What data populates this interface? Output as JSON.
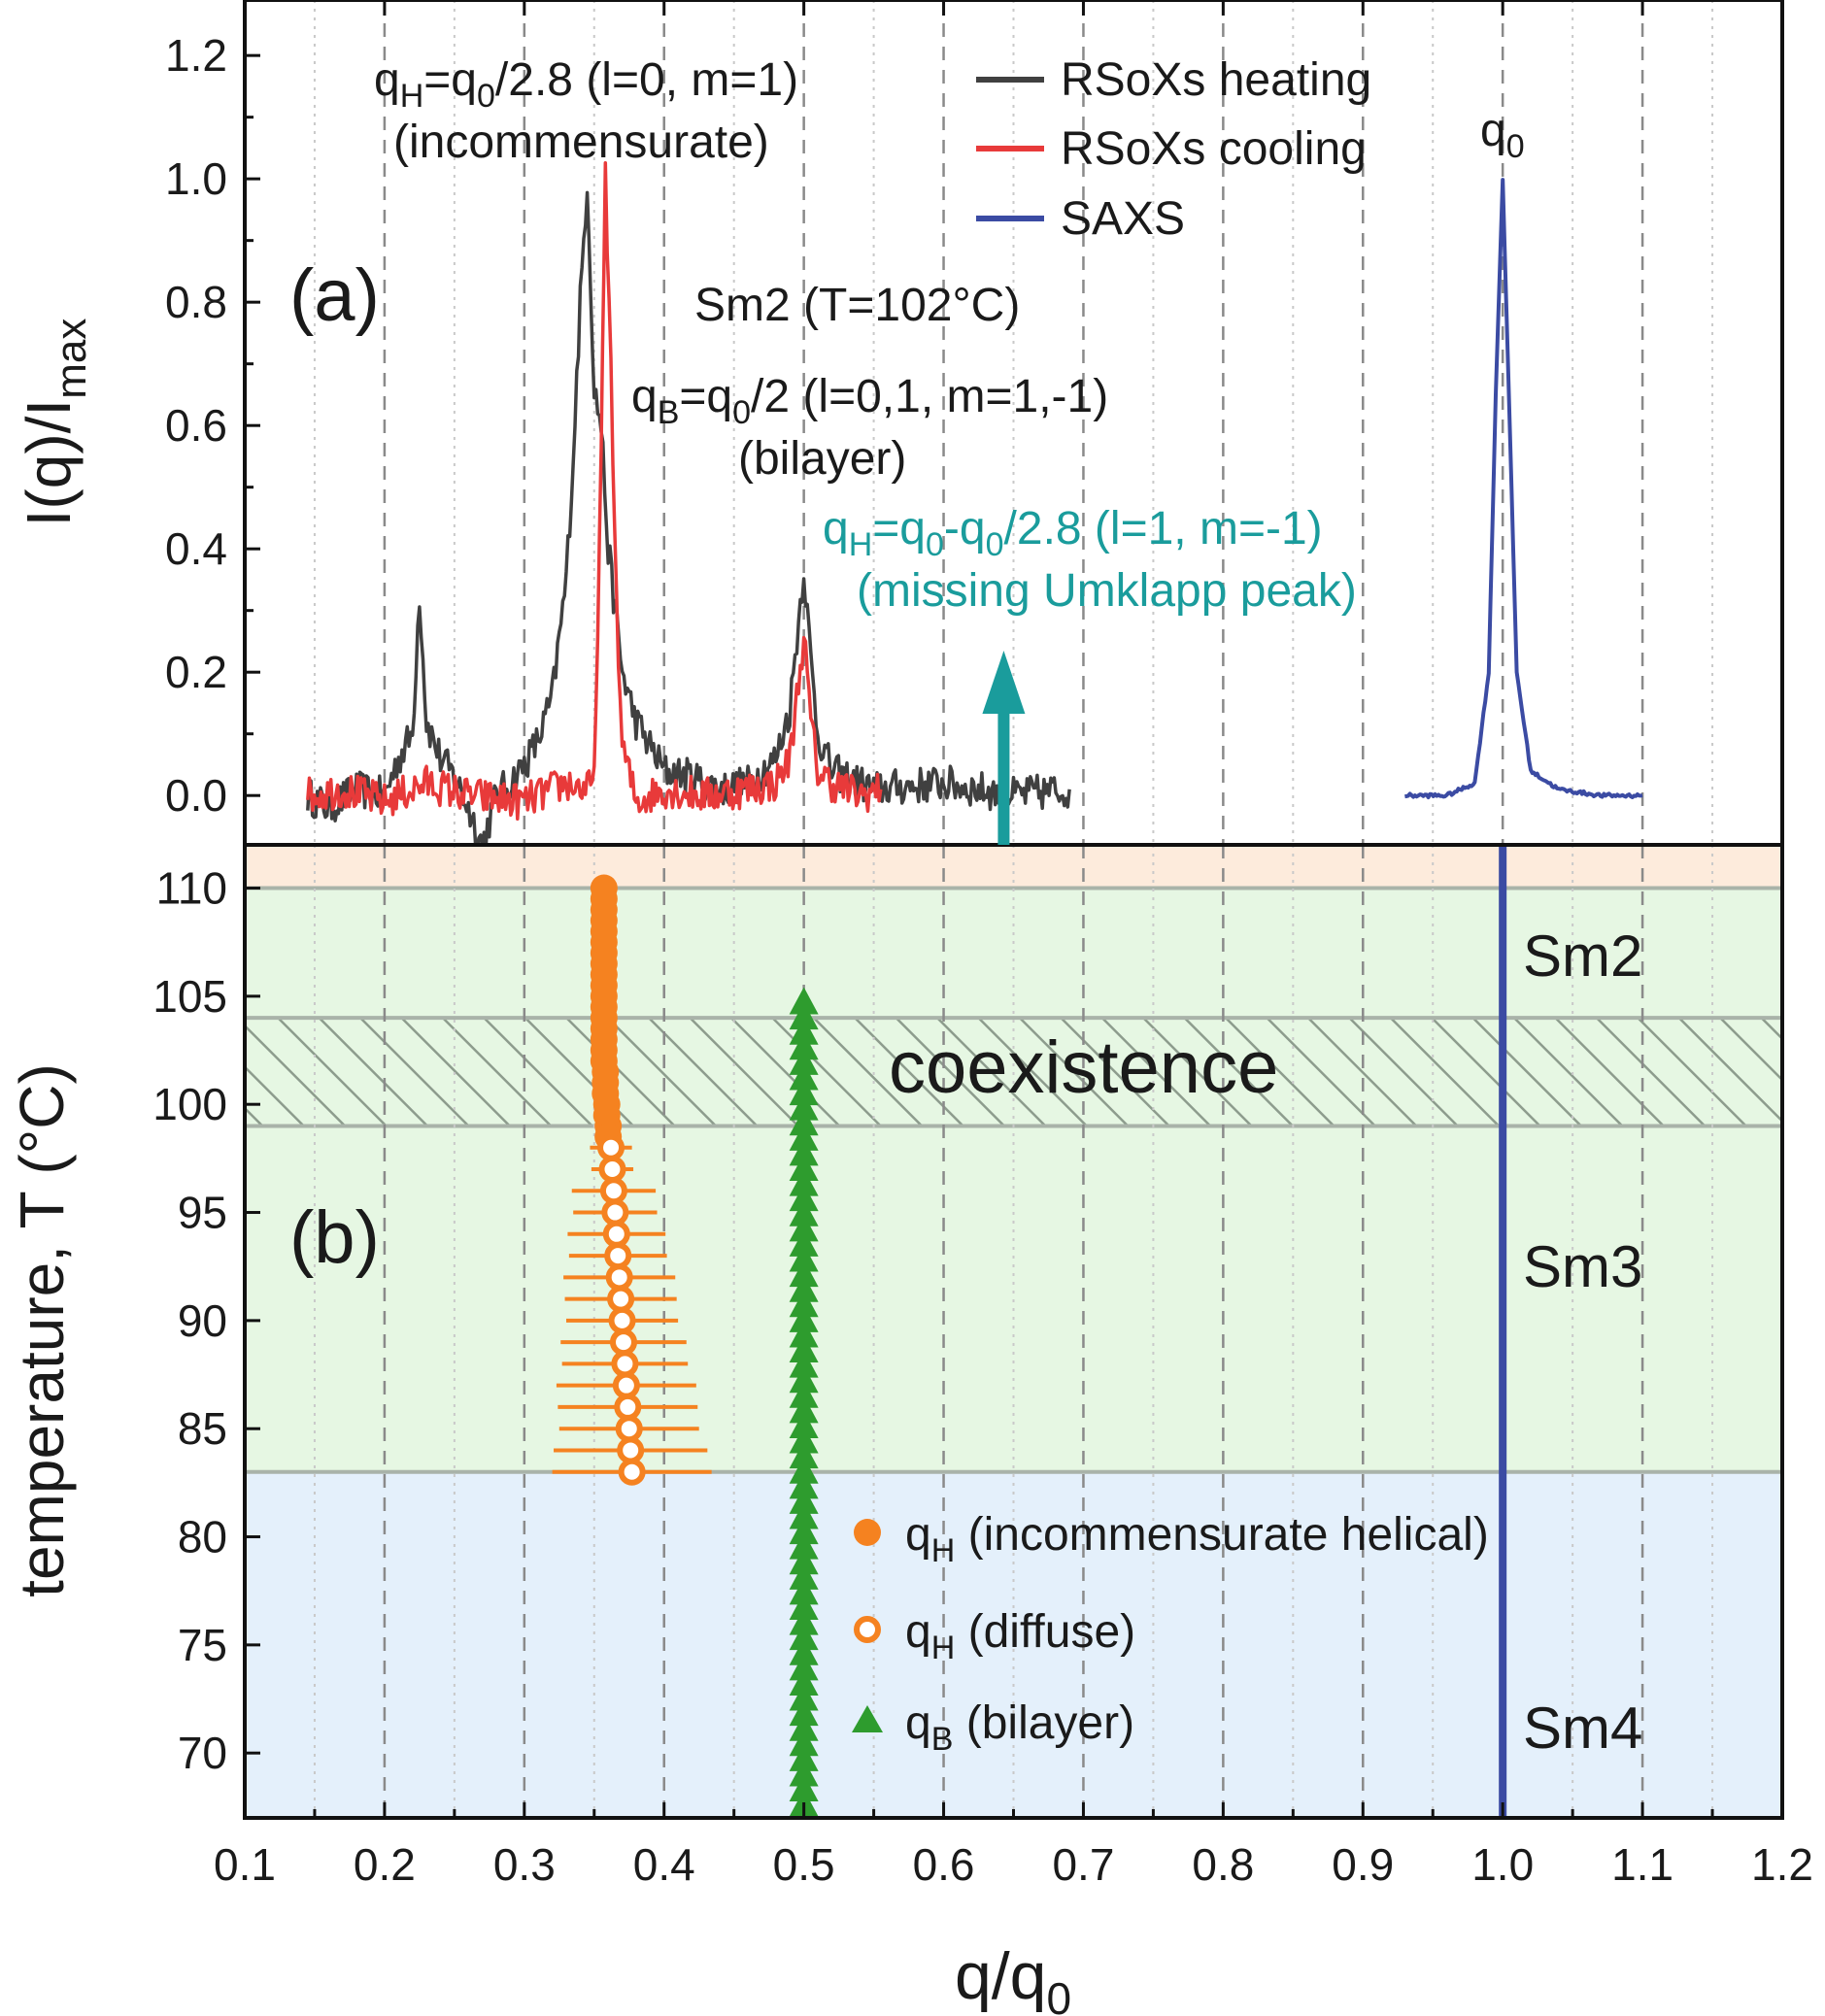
{
  "chart_data": [
    {
      "panel": "a",
      "panel_label": "(a)",
      "type": "line",
      "ylabel": "I(q)/I",
      "ylabel_sub": "max",
      "ylim": [
        -0.08,
        1.29
      ],
      "yticks": [
        "0.0",
        "0.2",
        "0.4",
        "0.6",
        "0.8",
        "1.0",
        "1.2"
      ],
      "ytick_values": [
        0,
        0.2,
        0.4,
        0.6,
        0.8,
        1.0,
        1.2
      ],
      "xlim": [
        0.1,
        1.2
      ],
      "grid": "vertical dashed",
      "legend_position": "top-center",
      "series": [
        {
          "name": "RSoXs heating",
          "color": "#404040",
          "points": [
            [
              0.145,
              0.0
            ],
            [
              0.16,
              -0.02
            ],
            [
              0.18,
              0.01
            ],
            [
              0.2,
              0.0
            ],
            [
              0.21,
              0.06
            ],
            [
              0.22,
              0.1
            ],
            [
              0.225,
              0.33
            ],
            [
              0.23,
              0.12
            ],
            [
              0.24,
              0.06
            ],
            [
              0.25,
              0.03
            ],
            [
              0.26,
              -0.02
            ],
            [
              0.27,
              -0.08
            ],
            [
              0.28,
              0.0
            ],
            [
              0.29,
              0.02
            ],
            [
              0.3,
              0.05
            ],
            [
              0.31,
              0.09
            ],
            [
              0.32,
              0.16
            ],
            [
              0.33,
              0.35
            ],
            [
              0.335,
              0.55
            ],
            [
              0.34,
              0.8
            ],
            [
              0.345,
              1.0
            ],
            [
              0.35,
              0.66
            ],
            [
              0.355,
              0.6
            ],
            [
              0.36,
              0.4
            ],
            [
              0.365,
              0.3
            ],
            [
              0.37,
              0.2
            ],
            [
              0.38,
              0.12
            ],
            [
              0.39,
              0.08
            ],
            [
              0.4,
              0.04
            ],
            [
              0.42,
              0.03
            ],
            [
              0.44,
              0.01
            ],
            [
              0.46,
              0.02
            ],
            [
              0.48,
              0.06
            ],
            [
              0.49,
              0.14
            ],
            [
              0.5,
              0.37
            ],
            [
              0.505,
              0.22
            ],
            [
              0.51,
              0.1
            ],
            [
              0.52,
              0.04
            ],
            [
              0.55,
              0.01
            ],
            [
              0.6,
              0.02
            ],
            [
              0.65,
              0.0
            ],
            [
              0.69,
              0.01
            ]
          ]
        },
        {
          "name": "RSoXs cooling",
          "color": "#e83a3a",
          "points": [
            [
              0.145,
              0.0
            ],
            [
              0.17,
              0.01
            ],
            [
              0.2,
              -0.01
            ],
            [
              0.23,
              0.02
            ],
            [
              0.26,
              0.0
            ],
            [
              0.3,
              -0.01
            ],
            [
              0.33,
              0.02
            ],
            [
              0.345,
              0.01
            ],
            [
              0.35,
              0.02
            ],
            [
              0.355,
              0.55
            ],
            [
              0.358,
              1.0
            ],
            [
              0.362,
              0.7
            ],
            [
              0.366,
              0.3
            ],
            [
              0.37,
              0.08
            ],
            [
              0.38,
              -0.01
            ],
            [
              0.4,
              0.01
            ],
            [
              0.43,
              0.0
            ],
            [
              0.46,
              0.01
            ],
            [
              0.48,
              0.02
            ],
            [
              0.49,
              0.06
            ],
            [
              0.5,
              0.26
            ],
            [
              0.505,
              0.12
            ],
            [
              0.51,
              0.04
            ],
            [
              0.52,
              0.02
            ],
            [
              0.54,
              0.0
            ],
            [
              0.555,
              0.01
            ]
          ]
        },
        {
          "name": "SAXS",
          "color": "#3b4ba3",
          "points": [
            [
              0.93,
              0.0
            ],
            [
              0.96,
              0.0
            ],
            [
              0.98,
              0.02
            ],
            [
              0.99,
              0.2
            ],
            [
              0.995,
              0.65
            ],
            [
              1.0,
              1.0
            ],
            [
              1.005,
              0.6
            ],
            [
              1.01,
              0.2
            ],
            [
              1.02,
              0.04
            ],
            [
              1.04,
              0.01
            ],
            [
              1.07,
              0.0
            ],
            [
              1.1,
              0.0
            ]
          ]
        }
      ],
      "annotations": [
        {
          "lines": [
            "q",
            "H",
            "=q",
            "0",
            "/2.8 (l=0, m=1)"
          ],
          "line2": "(incommensurate)"
        },
        {
          "text": "Sm2 (T=102°C)"
        },
        {
          "lines": [
            "q",
            "B",
            "=q",
            "0",
            "/2 (l=0,1, m=1,-1)"
          ],
          "line2": "(bilayer)"
        },
        {
          "lines": [
            "q",
            "H",
            "=q",
            "0",
            "-q",
            "0",
            "/2.8 (l=1, m=-1)"
          ],
          "line2": "(missing Umklapp peak)",
          "color": "#1a9c9c",
          "arrow_x": 0.643
        },
        {
          "lines": [
            "q",
            "0"
          ]
        }
      ]
    },
    {
      "panel": "b",
      "panel_label": "(b)",
      "type": "scatter",
      "ylabel": "temperature, T (°C)",
      "xlabel": "q/q",
      "xlabel_sub": "0",
      "xlim": [
        0.1,
        1.2
      ],
      "xticks": [
        "0.1",
        "0.2",
        "0.3",
        "0.4",
        "0.5",
        "0.6",
        "0.7",
        "0.8",
        "0.9",
        "1.0",
        "1.1",
        "1.2"
      ],
      "xtick_values": [
        0.1,
        0.2,
        0.3,
        0.4,
        0.5,
        0.6,
        0.7,
        0.8,
        0.9,
        1.0,
        1.1,
        1.2
      ],
      "ylim": [
        67,
        112
      ],
      "yticks": [
        "70",
        "75",
        "80",
        "85",
        "90",
        "95",
        "100",
        "105",
        "110"
      ],
      "ytick_values": [
        70,
        75,
        80,
        85,
        90,
        95,
        100,
        105,
        110
      ],
      "regions": [
        {
          "name": "top",
          "from": 110,
          "to": 112,
          "color": "#fdebdc"
        },
        {
          "name": "Sm2",
          "label": "Sm2",
          "from": 104,
          "to": 110,
          "color": "#e6f7e3"
        },
        {
          "name": "coexistence",
          "label": "coexistence",
          "from": 99,
          "to": 104,
          "color": "#e6f7e3",
          "hatched": true
        },
        {
          "name": "Sm3",
          "label": "Sm3",
          "from": 83,
          "to": 99,
          "color": "#e6f7e3"
        },
        {
          "name": "Sm4",
          "label": "Sm4",
          "from": 67,
          "to": 83,
          "color": "#e4f0fb"
        }
      ],
      "vline": {
        "x": 1.0,
        "color": "#3b4ba3"
      },
      "series": [
        {
          "name": "q_H (incommensurate helical)",
          "legend": [
            "q",
            "H",
            " (incommensurate helical)"
          ],
          "marker": "filled-circle",
          "color": "#f58220",
          "points": [
            [
              0.357,
              110.0
            ],
            [
              0.357,
              109.5
            ],
            [
              0.357,
              109.0
            ],
            [
              0.357,
              108.5
            ],
            [
              0.357,
              108.0
            ],
            [
              0.357,
              107.5
            ],
            [
              0.357,
              107.0
            ],
            [
              0.357,
              106.5
            ],
            [
              0.357,
              106.0
            ],
            [
              0.357,
              105.5
            ],
            [
              0.357,
              105.0
            ],
            [
              0.357,
              104.5
            ],
            [
              0.357,
              104.0
            ],
            [
              0.357,
              103.5
            ],
            [
              0.357,
              103.0
            ],
            [
              0.357,
              102.5
            ],
            [
              0.357,
              102.0
            ],
            [
              0.358,
              101.5
            ],
            [
              0.358,
              101.0
            ],
            [
              0.358,
              100.5
            ],
            [
              0.359,
              100.0
            ],
            [
              0.359,
              99.5
            ],
            [
              0.36,
              99.0
            ],
            [
              0.36,
              98.5
            ]
          ]
        },
        {
          "name": "q_H (diffuse)",
          "legend": [
            "q",
            "H",
            " (diffuse)"
          ],
          "marker": "open-circle",
          "color": "#f58220",
          "points": [
            [
              0.362,
              98.0,
              0.015
            ],
            [
              0.363,
              97.0,
              0.015
            ],
            [
              0.364,
              96.0,
              0.03
            ],
            [
              0.365,
              95.0,
              0.03
            ],
            [
              0.366,
              94.0,
              0.035
            ],
            [
              0.367,
              93.0,
              0.035
            ],
            [
              0.368,
              92.0,
              0.04
            ],
            [
              0.369,
              91.0,
              0.04
            ],
            [
              0.37,
              90.0,
              0.04
            ],
            [
              0.371,
              89.0,
              0.045
            ],
            [
              0.372,
              88.0,
              0.045
            ],
            [
              0.373,
              87.0,
              0.05
            ],
            [
              0.374,
              86.0,
              0.05
            ],
            [
              0.375,
              85.0,
              0.05
            ],
            [
              0.376,
              84.0,
              0.055
            ],
            [
              0.377,
              83.0,
              0.057
            ]
          ]
        },
        {
          "name": "q_B (bilayer)",
          "legend": [
            "q",
            "B",
            " (bilayer)"
          ],
          "marker": "triangle",
          "color": "#2e9c2e",
          "points": [
            [
              0.5,
              104.7
            ],
            [
              0.5,
              104.0
            ],
            [
              0.5,
              103.3
            ],
            [
              0.5,
              102.6
            ],
            [
              0.5,
              101.9
            ],
            [
              0.5,
              101.2
            ],
            [
              0.5,
              100.5
            ],
            [
              0.5,
              99.8
            ],
            [
              0.5,
              99.1
            ],
            [
              0.5,
              98.4
            ],
            [
              0.5,
              97.7
            ],
            [
              0.5,
              97.0
            ],
            [
              0.5,
              96.3
            ],
            [
              0.5,
              95.6
            ],
            [
              0.5,
              94.9
            ],
            [
              0.5,
              94.2
            ],
            [
              0.5,
              93.5
            ],
            [
              0.5,
              92.8
            ],
            [
              0.5,
              92.1
            ],
            [
              0.5,
              91.4
            ],
            [
              0.5,
              90.7
            ],
            [
              0.5,
              90.0
            ],
            [
              0.5,
              89.3
            ],
            [
              0.5,
              88.6
            ],
            [
              0.5,
              87.9
            ],
            [
              0.5,
              87.2
            ],
            [
              0.5,
              86.5
            ],
            [
              0.5,
              85.8
            ],
            [
              0.5,
              85.1
            ],
            [
              0.5,
              84.4
            ],
            [
              0.5,
              83.7
            ],
            [
              0.5,
              83.0
            ],
            [
              0.5,
              82.3
            ],
            [
              0.5,
              81.6
            ],
            [
              0.5,
              80.9
            ],
            [
              0.5,
              80.2
            ],
            [
              0.5,
              79.5
            ],
            [
              0.5,
              78.8
            ],
            [
              0.5,
              78.1
            ],
            [
              0.5,
              77.4
            ],
            [
              0.5,
              76.7
            ],
            [
              0.5,
              76.0
            ],
            [
              0.5,
              75.3
            ],
            [
              0.5,
              74.6
            ],
            [
              0.5,
              73.9
            ],
            [
              0.5,
              73.2
            ],
            [
              0.5,
              72.5
            ],
            [
              0.5,
              71.8
            ],
            [
              0.5,
              71.1
            ],
            [
              0.5,
              70.4
            ],
            [
              0.5,
              69.7
            ],
            [
              0.5,
              69.0
            ],
            [
              0.5,
              68.3
            ],
            [
              0.5,
              67.6
            ]
          ]
        }
      ]
    }
  ]
}
